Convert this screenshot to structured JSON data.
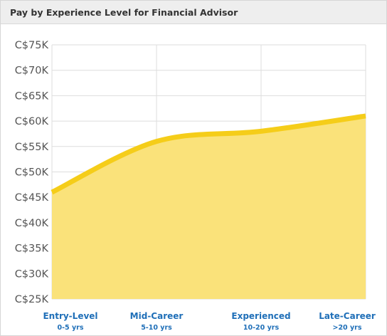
{
  "header": {
    "title": "Pay by Experience Level for Financial Advisor"
  },
  "chart_data": {
    "type": "area",
    "title": "Pay by Experience Level for Financial Advisor",
    "categories": [
      "Entry-Level",
      "Mid-Career",
      "Experienced",
      "Late-Career"
    ],
    "category_sublabels": [
      "0-5 yrs",
      "5-10 yrs",
      "10-20 yrs",
      ">20 yrs"
    ],
    "x_positions": [
      0,
      1,
      2,
      3
    ],
    "series": [
      {
        "x": [
          0,
          1,
          2,
          3
        ],
        "values": [
          46000,
          56000,
          58000,
          61000
        ]
      }
    ],
    "yticks": [
      25000,
      30000,
      35000,
      40000,
      45000,
      50000,
      55000,
      60000,
      65000,
      70000,
      75000
    ],
    "ytick_labels": [
      "C$25K",
      "C$30K",
      "C$35K",
      "C$40K",
      "C$45K",
      "C$50K",
      "C$55K",
      "C$60K",
      "C$65K",
      "C$70K",
      "C$75K"
    ],
    "ylim": [
      25000,
      75000
    ],
    "xlim": [
      0,
      3
    ],
    "grid": true,
    "colors": {
      "line": "#f5cd19",
      "fill": "#fae27a",
      "grid": "#dddddd",
      "category_label": "#1f6fb8"
    }
  }
}
